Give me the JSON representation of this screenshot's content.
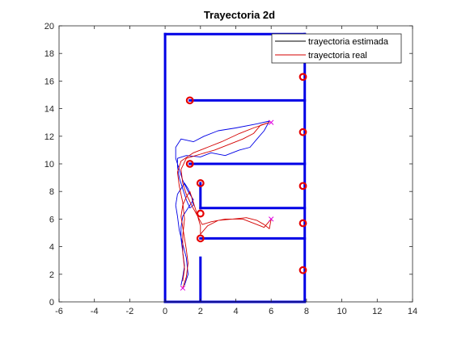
{
  "chart_data": {
    "type": "line",
    "title": "Trayectoria 2d",
    "xlabel": "",
    "ylabel": "",
    "xlim": [
      -6,
      14
    ],
    "ylim": [
      0,
      20
    ],
    "xticks": [
      -6,
      -4,
      -2,
      0,
      2,
      4,
      6,
      8,
      10,
      12,
      14
    ],
    "yticks": [
      0,
      2,
      4,
      6,
      8,
      10,
      12,
      14,
      16,
      18,
      20
    ],
    "grid": false,
    "legend_position": "top-right",
    "legend": [
      {
        "label": "trayectoria estimada",
        "color": "#000000"
      },
      {
        "label": "trayectoria real",
        "color": "#d40000"
      }
    ],
    "colors": {
      "walls": "#0000e6",
      "estimated_path": "#0000e6",
      "real_path": "#d40000",
      "landmarks": "#e60000",
      "endpoint_markers": "#e000e0",
      "axes": "#262626"
    },
    "walls": [
      {
        "x": [
          0,
          0
        ],
        "y": [
          0,
          19.4
        ]
      },
      {
        "x": [
          0,
          7.9
        ],
        "y": [
          19.4,
          19.4
        ]
      },
      {
        "x": [
          7.9,
          7.9
        ],
        "y": [
          0,
          19.4
        ]
      },
      {
        "x": [
          0,
          7.9
        ],
        "y": [
          0,
          0
        ]
      },
      {
        "x": [
          1.4,
          7.9
        ],
        "y": [
          14.6,
          14.6
        ]
      },
      {
        "x": [
          1.4,
          7.9
        ],
        "y": [
          10.0,
          10.0
        ]
      },
      {
        "x": [
          2.0,
          2.0
        ],
        "y": [
          6.8,
          8.6
        ]
      },
      {
        "x": [
          2.0,
          7.9
        ],
        "y": [
          6.8,
          6.8
        ]
      },
      {
        "x": [
          2.0,
          7.9
        ],
        "y": [
          4.6,
          4.6
        ]
      },
      {
        "x": [
          2.0,
          2.0
        ],
        "y": [
          0,
          3.2
        ]
      }
    ],
    "landmarks": [
      {
        "x": 1.4,
        "y": 14.6
      },
      {
        "x": 1.4,
        "y": 10.0
      },
      {
        "x": 2.0,
        "y": 8.6
      },
      {
        "x": 2.0,
        "y": 6.4
      },
      {
        "x": 2.0,
        "y": 4.6
      },
      {
        "x": 7.8,
        "y": 16.3
      },
      {
        "x": 7.8,
        "y": 12.3
      },
      {
        "x": 7.8,
        "y": 8.4
      },
      {
        "x": 7.8,
        "y": 5.7
      },
      {
        "x": 7.8,
        "y": 2.3
      }
    ],
    "series": [
      {
        "name": "trayectoria estimada",
        "points": [
          [
            1.1,
            1.2
          ],
          [
            1.3,
            2.0
          ],
          [
            1.2,
            3.2
          ],
          [
            1.0,
            4.2
          ],
          [
            0.8,
            5.2
          ],
          [
            0.7,
            6.2
          ],
          [
            0.6,
            7.0
          ],
          [
            0.7,
            7.8
          ],
          [
            0.9,
            8.2
          ],
          [
            1.1,
            8.6
          ],
          [
            1.3,
            8.2
          ],
          [
            1.5,
            7.6
          ],
          [
            1.6,
            7.0
          ],
          [
            1.4,
            6.8
          ],
          [
            1.2,
            7.4
          ],
          [
            1.0,
            8.2
          ],
          [
            0.8,
            9.0
          ],
          [
            0.7,
            9.8
          ],
          [
            0.7,
            10.4
          ],
          [
            1.2,
            10.6
          ],
          [
            2.0,
            10.5
          ],
          [
            2.6,
            10.8
          ],
          [
            3.4,
            10.6
          ],
          [
            4.2,
            11.0
          ],
          [
            4.8,
            11.2
          ],
          [
            5.2,
            11.8
          ],
          [
            5.6,
            12.4
          ],
          [
            5.9,
            13.1
          ],
          [
            5.2,
            12.9
          ],
          [
            4.0,
            12.6
          ],
          [
            3.0,
            12.4
          ],
          [
            2.2,
            12.0
          ],
          [
            1.6,
            11.6
          ],
          [
            0.9,
            11.8
          ],
          [
            0.6,
            11.2
          ],
          [
            0.6,
            10.4
          ],
          [
            0.8,
            9.6
          ],
          [
            1.0,
            8.8
          ],
          [
            1.3,
            8.0
          ],
          [
            1.6,
            7.4
          ],
          [
            1.3,
            6.8
          ],
          [
            1.0,
            6.2
          ],
          [
            0.9,
            5.4
          ],
          [
            0.9,
            4.6
          ],
          [
            1.0,
            3.6
          ],
          [
            1.1,
            2.6
          ],
          [
            1.0,
            1.8
          ],
          [
            0.9,
            1.2
          ]
        ]
      },
      {
        "name": "trayectoria real",
        "points": [
          [
            1.0,
            1.0
          ],
          [
            1.2,
            1.8
          ],
          [
            1.3,
            2.8
          ],
          [
            1.2,
            3.8
          ],
          [
            1.1,
            4.6
          ],
          [
            1.0,
            5.4
          ],
          [
            0.9,
            6.2
          ],
          [
            1.0,
            7.0
          ],
          [
            1.2,
            7.6
          ],
          [
            1.4,
            8.0
          ],
          [
            1.6,
            7.2
          ],
          [
            1.8,
            6.4
          ],
          [
            2.0,
            5.5
          ],
          [
            2.0,
            4.9
          ],
          [
            2.4,
            5.5
          ],
          [
            3.0,
            5.9
          ],
          [
            3.8,
            6.0
          ],
          [
            4.6,
            6.1
          ],
          [
            5.2,
            5.9
          ],
          [
            5.6,
            5.6
          ],
          [
            5.9,
            5.3
          ],
          [
            6.0,
            6.0
          ],
          [
            5.6,
            5.4
          ],
          [
            5.2,
            5.6
          ],
          [
            4.4,
            6.0
          ],
          [
            3.4,
            6.0
          ],
          [
            2.6,
            5.8
          ],
          [
            2.1,
            5.6
          ],
          [
            1.8,
            6.3
          ],
          [
            1.5,
            7.0
          ],
          [
            1.2,
            7.8
          ],
          [
            1.0,
            8.6
          ],
          [
            0.9,
            9.6
          ],
          [
            1.2,
            10.4
          ],
          [
            2.0,
            10.7
          ],
          [
            2.8,
            11.0
          ],
          [
            3.6,
            11.4
          ],
          [
            4.4,
            11.8
          ],
          [
            5.0,
            12.2
          ],
          [
            5.4,
            12.8
          ],
          [
            5.9,
            13.0
          ],
          [
            5.0,
            12.6
          ],
          [
            4.2,
            12.2
          ],
          [
            3.2,
            11.6
          ],
          [
            2.4,
            11.2
          ],
          [
            1.6,
            10.8
          ],
          [
            0.9,
            10.2
          ],
          [
            0.7,
            9.4
          ],
          [
            0.8,
            8.4
          ],
          [
            1.0,
            7.2
          ],
          [
            1.1,
            6.0
          ],
          [
            1.0,
            4.8
          ],
          [
            1.0,
            3.6
          ],
          [
            1.1,
            2.4
          ],
          [
            1.0,
            1.5
          ]
        ]
      }
    ],
    "endpoint_markers": [
      {
        "x": 6.0,
        "y": 13.0
      },
      {
        "x": 6.0,
        "y": 6.0
      },
      {
        "x": 1.0,
        "y": 1.0
      }
    ]
  }
}
